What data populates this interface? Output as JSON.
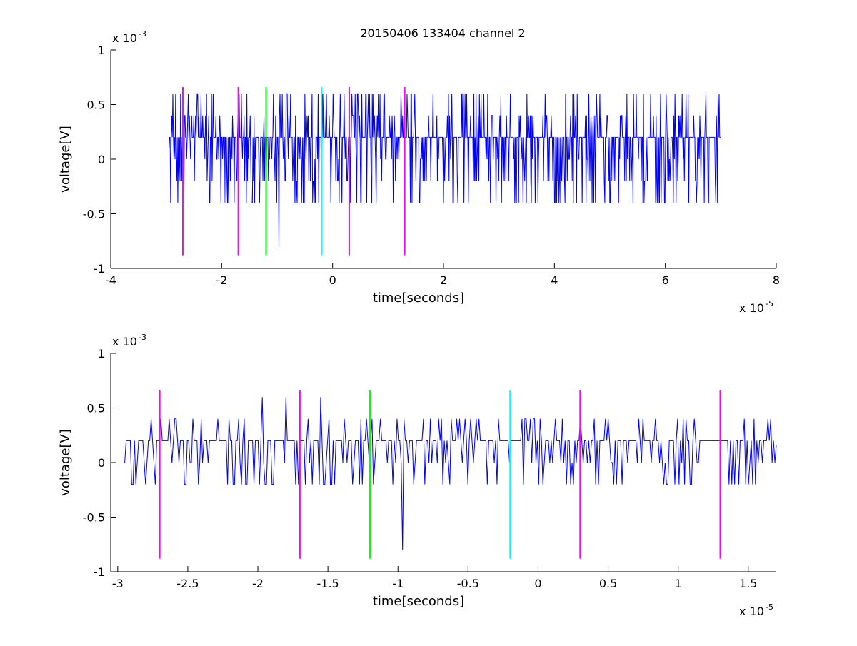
{
  "figure": {
    "title": "20150406 133404 channel 2"
  },
  "chart_data": [
    {
      "type": "line",
      "title": "20150406 133404 channel 2",
      "xlabel": "time[seconds]",
      "ylabel": "voltage[V]",
      "x_exponent_label": "x 10",
      "x_exponent": "-5",
      "y_exponent_label": "x 10",
      "y_exponent": "-3",
      "xlim": [
        -4,
        8
      ],
      "ylim": [
        -1,
        1
      ],
      "xticks": [
        -4,
        -2,
        0,
        2,
        4,
        6,
        8
      ],
      "xtick_labels": [
        "-4",
        "-2",
        "0",
        "2",
        "4",
        "6",
        "8"
      ],
      "yticks": [
        -1,
        -0.5,
        0,
        0.5,
        1
      ],
      "ytick_labels": [
        "-1",
        "-0.5",
        "0",
        "0.5",
        "1"
      ],
      "grid": false,
      "series": [
        {
          "color": "#0000ff",
          "x_range": [
            -2.95,
            7.0
          ],
          "samples": 1000,
          "levels": [
            -0.4,
            -0.2,
            0,
            0.2,
            0.4,
            0.6
          ],
          "notable_points": [
            {
              "x": -2.95,
              "y": 0.1
            },
            {
              "x": -0.97,
              "y": -0.8
            },
            {
              "x": 2.35,
              "y": 0.6
            },
            {
              "x": 2.95,
              "y": -0.4
            },
            {
              "x": 3.5,
              "y": 0.6
            },
            {
              "x": 3.7,
              "y": -0.4
            },
            {
              "x": 4.35,
              "y": 0.6
            },
            {
              "x": 7.0,
              "y": 0.2
            }
          ],
          "baseline": 0.2
        }
      ],
      "markers": [
        {
          "x": -2.7,
          "color": "#ff00ff",
          "y_range": [
            -0.88,
            0.66
          ]
        },
        {
          "x": -1.7,
          "color": "#ff00ff",
          "y_range": [
            -0.88,
            0.66
          ]
        },
        {
          "x": -1.2,
          "color": "#00ff00",
          "y_range": [
            -0.88,
            0.66
          ]
        },
        {
          "x": -0.2,
          "color": "#00ffff",
          "y_range": [
            -0.88,
            0.66
          ]
        },
        {
          "x": 0.3,
          "color": "#ff00ff",
          "y_range": [
            -0.88,
            0.66
          ]
        },
        {
          "x": 1.3,
          "color": "#ff00ff",
          "y_range": [
            -0.88,
            0.66
          ]
        }
      ]
    },
    {
      "type": "line",
      "title": "",
      "xlabel": "time[seconds]",
      "ylabel": "voltage[V]",
      "x_exponent_label": "x 10",
      "x_exponent": "-5",
      "y_exponent_label": "x 10",
      "y_exponent": "-3",
      "xlim": [
        -3.05,
        1.7
      ],
      "ylim": [
        -1,
        1
      ],
      "xticks": [
        -3,
        -2.5,
        -2,
        -1.5,
        -1,
        -0.5,
        0,
        0.5,
        1,
        1.5
      ],
      "xtick_labels": [
        "-3",
        "-2.5",
        "-2",
        "-1.5",
        "-1",
        "-0.5",
        "0",
        "0.5",
        "1",
        "1.5"
      ],
      "yticks": [
        -1,
        -0.5,
        0,
        0.5,
        1
      ],
      "ytick_labels": [
        "-1",
        "-0.5",
        "0",
        "0.5",
        "1"
      ],
      "grid": false,
      "series": [
        {
          "color": "#0000ff",
          "x_range": [
            -2.95,
            1.7
          ],
          "samples": 470,
          "levels": [
            -0.2,
            0,
            0.2,
            0.4
          ],
          "notable_points": [
            {
              "x": -2.95,
              "y": 0.0
            },
            {
              "x": -2.9,
              "y": -0.2
            },
            {
              "x": -2.22,
              "y": -0.2
            },
            {
              "x": -1.97,
              "y": 0.6
            },
            {
              "x": -1.8,
              "y": 0.6
            },
            {
              "x": -1.55,
              "y": 0.6
            },
            {
              "x": -1.18,
              "y": -0.2
            },
            {
              "x": -0.97,
              "y": -0.8
            },
            {
              "x": -0.5,
              "y": -0.2
            },
            {
              "x": 0.6,
              "y": -0.2
            },
            {
              "x": 1.5,
              "y": -0.2
            },
            {
              "x": 1.7,
              "y": 0.16
            }
          ],
          "flat_segment": [
            1.2,
            1.33
          ],
          "baseline": 0.2
        }
      ],
      "markers": [
        {
          "x": -2.7,
          "color": "#ff00ff",
          "y_range": [
            -0.88,
            0.66
          ]
        },
        {
          "x": -1.7,
          "color": "#ff00ff",
          "y_range": [
            -0.88,
            0.66
          ]
        },
        {
          "x": -1.2,
          "color": "#00ff00",
          "y_range": [
            -0.88,
            0.66
          ]
        },
        {
          "x": -0.2,
          "color": "#00ffff",
          "y_range": [
            -0.88,
            0.66
          ]
        },
        {
          "x": 0.3,
          "color": "#ff00ff",
          "y_range": [
            -0.88,
            0.66
          ]
        },
        {
          "x": 1.3,
          "color": "#ff00ff",
          "y_range": [
            -0.88,
            0.66
          ]
        }
      ]
    }
  ]
}
